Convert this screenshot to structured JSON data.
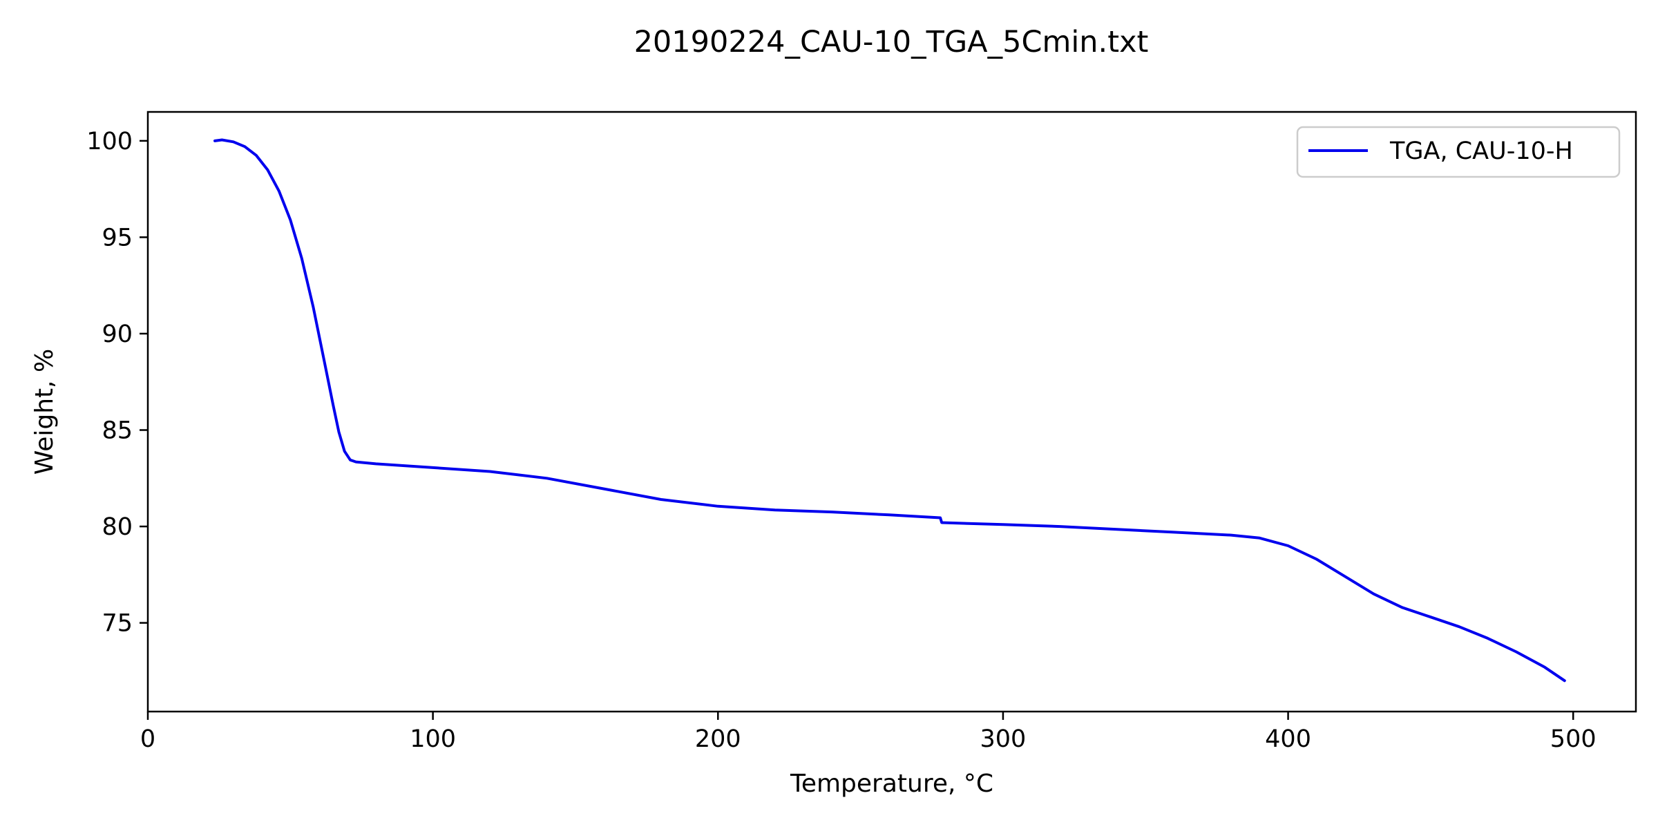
{
  "chart_data": {
    "type": "line",
    "title": "20190224_CAU-10_TGA_5Cmin.txt",
    "xlabel": "Temperature, °C",
    "ylabel": "Weight, %",
    "xlim": [
      0,
      522
    ],
    "ylim": [
      70.4,
      101.5
    ],
    "xticks": [
      0,
      100,
      200,
      300,
      400,
      500
    ],
    "yticks": [
      75,
      80,
      85,
      90,
      95,
      100
    ],
    "grid": false,
    "legend_position": "top-right",
    "colors": {
      "series": "#0000ee",
      "axes": "#000000",
      "legend_border": "#cccccc"
    },
    "series": [
      {
        "name": "TGA, CAU-10-H",
        "points": [
          [
            23.5,
            100.0
          ],
          [
            26,
            100.05
          ],
          [
            30,
            99.95
          ],
          [
            34,
            99.7
          ],
          [
            38,
            99.25
          ],
          [
            42,
            98.5
          ],
          [
            46,
            97.4
          ],
          [
            50,
            95.9
          ],
          [
            54,
            93.9
          ],
          [
            58,
            91.4
          ],
          [
            62,
            88.5
          ],
          [
            65,
            86.3
          ],
          [
            67,
            84.9
          ],
          [
            69,
            83.9
          ],
          [
            71,
            83.45
          ],
          [
            73,
            83.35
          ],
          [
            80,
            83.25
          ],
          [
            100,
            83.05
          ],
          [
            120,
            82.85
          ],
          [
            140,
            82.5
          ],
          [
            160,
            81.95
          ],
          [
            180,
            81.4
          ],
          [
            200,
            81.05
          ],
          [
            220,
            80.85
          ],
          [
            240,
            80.75
          ],
          [
            260,
            80.6
          ],
          [
            278,
            80.45
          ],
          [
            278.5,
            80.2
          ],
          [
            300,
            80.1
          ],
          [
            320,
            80.0
          ],
          [
            340,
            79.85
          ],
          [
            360,
            79.7
          ],
          [
            380,
            79.55
          ],
          [
            390,
            79.4
          ],
          [
            400,
            79.0
          ],
          [
            410,
            78.3
          ],
          [
            420,
            77.4
          ],
          [
            430,
            76.5
          ],
          [
            440,
            75.8
          ],
          [
            450,
            75.3
          ],
          [
            460,
            74.8
          ],
          [
            470,
            74.2
          ],
          [
            480,
            73.5
          ],
          [
            490,
            72.7
          ],
          [
            497,
            72.0
          ]
        ]
      }
    ]
  }
}
